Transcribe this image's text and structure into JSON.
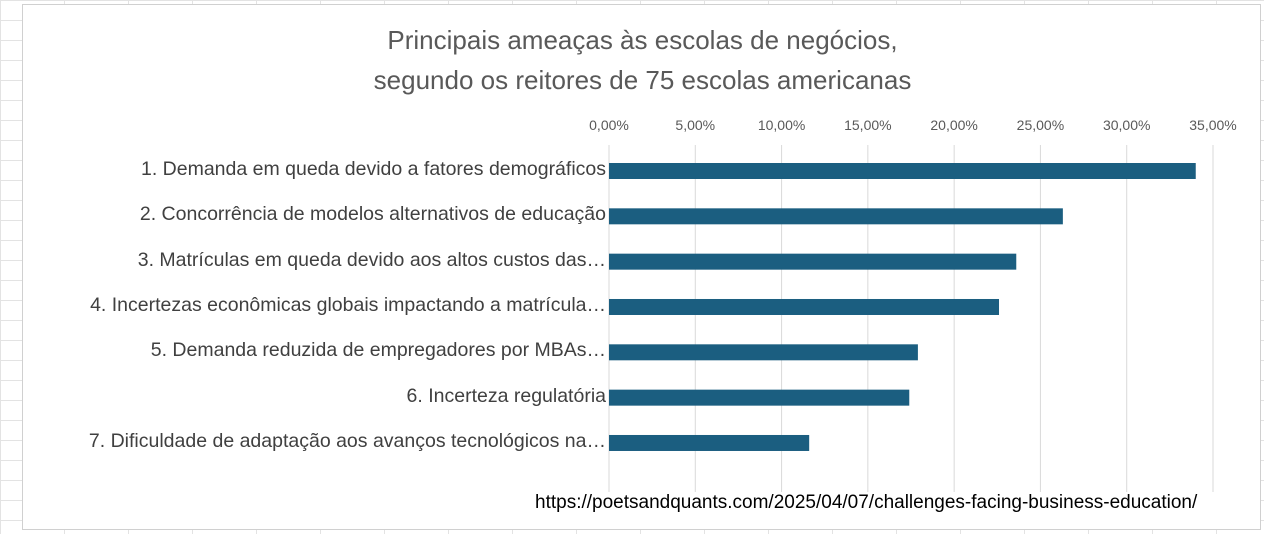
{
  "chart_data": {
    "type": "bar",
    "orientation": "horizontal",
    "title": "Principais ameaças às escolas de negócios,\nsegundo os reitores de 75 escolas americanas",
    "title_lines": [
      "Principais ameaças às escolas de negócios,",
      "segundo os reitores de 75 escolas americanas"
    ],
    "categories": [
      "1. Demanda em queda devido a fatores demográficos",
      "2. Concorrência de modelos alternativos de educação",
      "3. Matrículas em queda devido aos altos custos das…",
      "4. Incertezas econômicas globais impactando a matrícula…",
      "5. Demanda reduzida de empregadores por MBAs…",
      "6. Incerteza regulatória",
      "7. Dificuldade de adaptação aos avanços tecnológicos na…"
    ],
    "values": [
      34.0,
      26.3,
      23.6,
      22.6,
      17.9,
      17.4,
      11.6
    ],
    "xlim": [
      0,
      35
    ],
    "x_axis_position": "top",
    "tick_values": [
      0,
      5,
      10,
      15,
      20,
      25,
      30,
      35
    ],
    "tick_labels": [
      "0,00%",
      "5,00%",
      "10,00%",
      "15,00%",
      "20,00%",
      "25,00%",
      "30,00%",
      "35,00%"
    ],
    "grid": true,
    "legend": false,
    "bar_color": "#1b5e80",
    "gridline_color": "#d9d9d9"
  },
  "source": "https://poetsandquants.com/2025/04/07/challenges-facing-business-education/"
}
